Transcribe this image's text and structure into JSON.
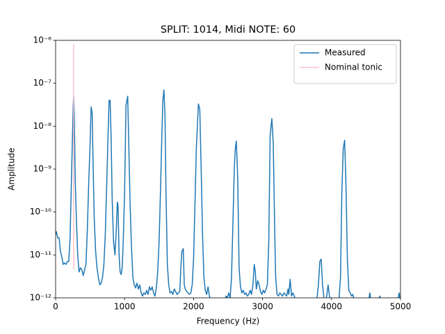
{
  "chart_data": {
    "type": "line",
    "title": "SPLIT: 1014, Midi NOTE: 60",
    "x_label": "Frequency (Hz)",
    "y_label": "Amplitude",
    "xlim": [
      0,
      5000
    ],
    "xticks": [
      0,
      1000,
      2000,
      3000,
      4000,
      5000
    ],
    "ylim": [
      1e-12,
      1e-06
    ],
    "yscale": "log",
    "yticks": [
      {
        "value": 1e-12,
        "label": "10⁻¹²"
      },
      {
        "value": 1e-11,
        "label": "10⁻¹¹"
      },
      {
        "value": 1e-10,
        "label": "10⁻¹⁰"
      },
      {
        "value": 1e-09,
        "label": "10⁻⁹"
      },
      {
        "value": 1e-08,
        "label": "10⁻⁸"
      },
      {
        "value": 1e-07,
        "label": "10⁻⁷"
      },
      {
        "value": 1e-06,
        "label": "10⁻⁶"
      }
    ],
    "legend": "upper right",
    "series": [
      {
        "name": "Measured",
        "color": "#1f77b4",
        "x": [
          0,
          10,
          30,
          50,
          70,
          90,
          110,
          130,
          150,
          170,
          190,
          210,
          240,
          255,
          262,
          270,
          285,
          300,
          320,
          340,
          360,
          380,
          400,
          420,
          440,
          460,
          480,
          500,
          515,
          530,
          545,
          560,
          580,
          600,
          620,
          640,
          660,
          680,
          700,
          720,
          740,
          760,
          775,
          790,
          805,
          820,
          840,
          860,
          880,
          895,
          905,
          920,
          935,
          950,
          965,
          980,
          1000,
          1020,
          1045,
          1060,
          1080,
          1100,
          1120,
          1140,
          1160,
          1180,
          1200,
          1220,
          1240,
          1260,
          1280,
          1300,
          1320,
          1340,
          1360,
          1380,
          1400,
          1420,
          1440,
          1460,
          1480,
          1500,
          1520,
          1540,
          1555,
          1570,
          1585,
          1600,
          1620,
          1640,
          1660,
          1680,
          1700,
          1720,
          1740,
          1760,
          1780,
          1800,
          1815,
          1830,
          1850,
          1865,
          1880,
          1900,
          1920,
          1940,
          1960,
          1980,
          2000,
          2020,
          2040,
          2070,
          2090,
          2110,
          2130,
          2150,
          2170,
          2190,
          2210,
          2230,
          2250,
          2300,
          2350,
          2400,
          2450,
          2470,
          2490,
          2510,
          2530,
          2550,
          2570,
          2590,
          2605,
          2620,
          2640,
          2660,
          2680,
          2700,
          2720,
          2740,
          2760,
          2780,
          2800,
          2820,
          2840,
          2860,
          2880,
          2895,
          2910,
          2930,
          2950,
          2970,
          2990,
          3010,
          3030,
          3050,
          3070,
          3090,
          3110,
          3135,
          3155,
          3175,
          3190,
          3210,
          3230,
          3250,
          3270,
          3290,
          3310,
          3330,
          3350,
          3370,
          3380,
          3400,
          3420,
          3440,
          3460,
          3480,
          3520,
          3560,
          3600,
          3640,
          3680,
          3720,
          3760,
          3790,
          3810,
          3830,
          3850,
          3870,
          3890,
          3910,
          3930,
          3950,
          3970,
          3990,
          4040,
          4080,
          4110,
          4130,
          4150,
          4170,
          4190,
          4210,
          4230,
          4250,
          4270,
          4290,
          4310,
          4330,
          4400,
          4500,
          4540,
          4555,
          4560,
          4570,
          4650,
          4700,
          4720,
          4800,
          4900,
          4960,
          4980,
          5000
        ],
        "values": [
          3e-11,
          3.5e-11,
          2.5e-11,
          2.5e-11,
          1.2e-11,
          9e-12,
          6e-12,
          6.5e-12,
          6e-12,
          7e-12,
          7e-12,
          2.5e-11,
          3e-09,
          3e-08,
          5e-08,
          2e-08,
          5e-10,
          8e-11,
          1e-11,
          4e-12,
          5e-12,
          4.5e-12,
          3.3e-12,
          4.5e-12,
          6e-12,
          4e-11,
          5e-10,
          4e-09,
          2.8e-08,
          2e-08,
          1e-09,
          7e-11,
          1.2e-11,
          5e-12,
          3e-12,
          2e-12,
          2.2e-12,
          3e-12,
          6e-12,
          3e-11,
          4e-10,
          6e-09,
          4e-08,
          4e-08,
          5e-09,
          2e-10,
          2e-11,
          1e-11,
          4e-11,
          1.7e-10,
          1.4e-10,
          1e-11,
          4e-12,
          3.5e-12,
          5e-12,
          2e-11,
          3e-10,
          3e-08,
          5e-08,
          4e-09,
          1.5e-10,
          1.5e-11,
          3e-12,
          2e-12,
          1.7e-12,
          2.2e-12,
          1.6e-12,
          2e-12,
          1.3e-12,
          1.1e-12,
          1.3e-12,
          1.2e-12,
          1.5e-12,
          1.2e-12,
          1.8e-12,
          1.5e-12,
          1.8e-12,
          1.3e-12,
          1.1e-12,
          1.7e-12,
          4e-12,
          2e-11,
          3e-10,
          6e-09,
          4e-08,
          7e-08,
          2e-08,
          3e-10,
          6e-12,
          2e-12,
          1.3e-12,
          1.4e-12,
          1.2e-12,
          1.6e-12,
          1.4e-12,
          1.2e-12,
          1.3e-12,
          1.4e-12,
          5e-12,
          1.2e-11,
          1.4e-11,
          2e-12,
          1.6e-12,
          1.4e-12,
          1.3e-12,
          1.2e-12,
          1.3e-12,
          2e-12,
          8e-12,
          1.5e-10,
          3e-09,
          3.3e-08,
          2.5e-08,
          1e-09,
          3e-11,
          3e-12,
          1.5e-12,
          1.2e-12,
          1.8e-12,
          1.1e-12,
          8e-13,
          6e-13,
          8e-13,
          6e-13,
          8e-13,
          1.1e-12,
          1e-12,
          1.3e-12,
          1e-12,
          3e-12,
          5e-11,
          1e-09,
          3e-09,
          4.5e-09,
          6e-10,
          5e-12,
          1.8e-12,
          1.3e-12,
          1.5e-12,
          1.2e-12,
          1.3e-12,
          1.1e-12,
          1.2e-12,
          1.5e-12,
          1.2e-12,
          2e-12,
          6e-12,
          4e-12,
          1.6e-12,
          2.5e-12,
          2e-12,
          1.4e-12,
          1.2e-12,
          1.5e-12,
          1.3e-12,
          1.6e-12,
          2e-12,
          2e-11,
          6e-09,
          1.5e-08,
          4e-09,
          5e-11,
          3e-12,
          1.2e-12,
          1.1e-12,
          1.3e-12,
          1.2e-12,
          1.1e-12,
          1.3e-12,
          1.2e-12,
          1.1e-12,
          1.6e-12,
          1.2e-12,
          2.7e-12,
          1.1e-12,
          1.3e-12,
          1.1e-12,
          8e-13,
          6e-13,
          8e-13,
          6e-13,
          9e-13,
          6e-13,
          8e-13,
          7e-13,
          1e-12,
          2e-12,
          7e-12,
          8e-12,
          2e-12,
          1e-12,
          8e-13,
          1.1e-12,
          2e-12,
          1.1e-12,
          8e-13,
          6e-13,
          8e-13,
          1e-12,
          3e-12,
          3e-10,
          3e-09,
          4.7e-09,
          4e-10,
          8e-12,
          1.5e-12,
          1.3e-12,
          1.1e-12,
          1.2e-12,
          8e-13,
          6e-13,
          7e-13,
          9e-13,
          1.3e-12,
          1.2e-12,
          8e-13,
          6e-13,
          1.1e-12,
          8e-13,
          6e-13,
          7e-13,
          9e-13,
          1.3e-12,
          8e-13
        ]
      },
      {
        "name": "Nominal tonic",
        "color": "#ffc0cb",
        "x": [
          261.63,
          261.63
        ],
        "values": [
          4.6e-12,
          8.3e-07
        ]
      }
    ]
  }
}
